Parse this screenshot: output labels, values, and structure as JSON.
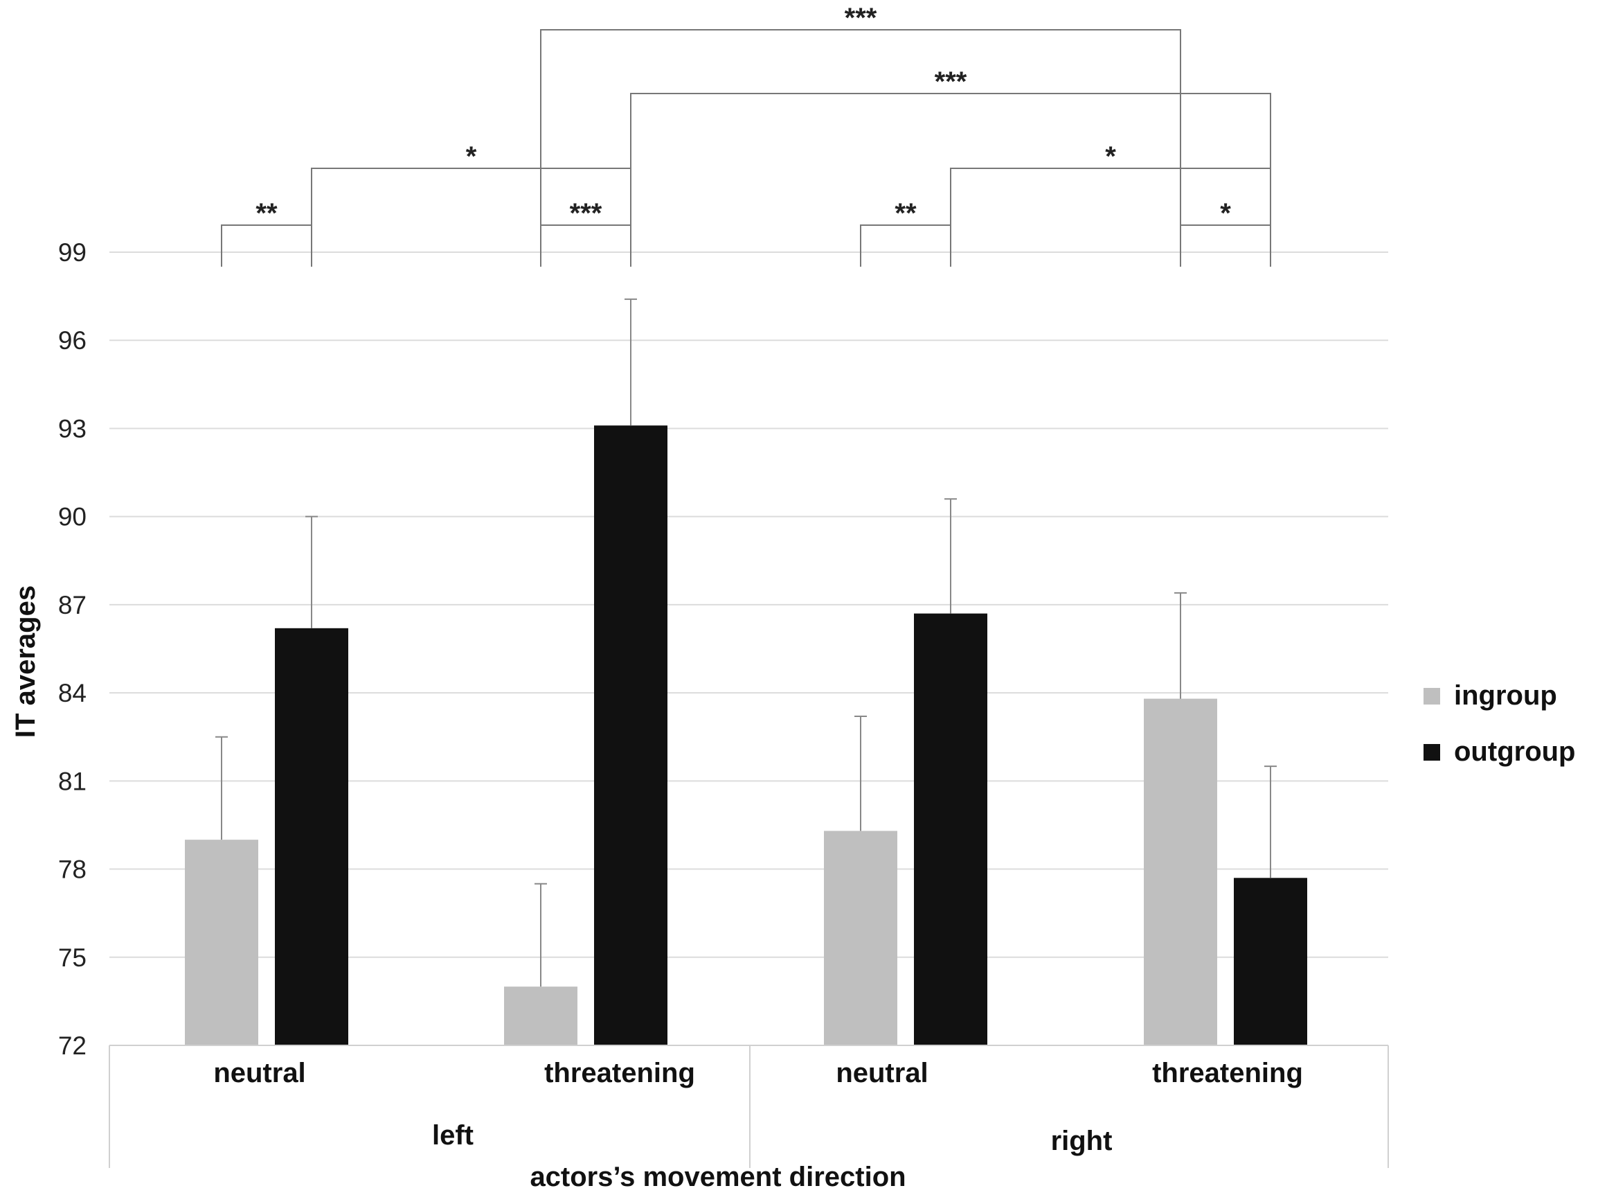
{
  "chart_data": {
    "type": "bar",
    "ylabel": "IT averages",
    "xlabel": "actors’s movement direction",
    "ylim": [
      72,
      99
    ],
    "yticks": [
      72,
      75,
      78,
      81,
      84,
      87,
      90,
      93,
      96,
      99
    ],
    "groups": [
      "left",
      "right"
    ],
    "categories": [
      "neutral",
      "threatening",
      "neutral",
      "threatening"
    ],
    "category_groups": [
      0,
      0,
      1,
      1
    ],
    "series": [
      {
        "name": "ingroup",
        "color": "#bfbfbf",
        "values": [
          79.0,
          74.0,
          79.3,
          83.8
        ],
        "errors": [
          3.5,
          3.5,
          3.9,
          3.6
        ]
      },
      {
        "name": "outgroup",
        "color": "#111111",
        "values": [
          86.2,
          93.1,
          86.7,
          77.7
        ],
        "errors": [
          3.8,
          4.3,
          3.9,
          3.8
        ]
      }
    ],
    "significance": [
      {
        "from": [
          0,
          0
        ],
        "to": [
          0,
          1
        ],
        "label": "**"
      },
      {
        "from": [
          1,
          0
        ],
        "to": [
          1,
          1
        ],
        "label": "***"
      },
      {
        "from": [
          2,
          0
        ],
        "to": [
          2,
          1
        ],
        "label": "**"
      },
      {
        "from": [
          3,
          0
        ],
        "to": [
          3,
          1
        ],
        "label": "*"
      },
      {
        "from": [
          0,
          1
        ],
        "to": [
          1,
          1
        ],
        "label": "*"
      },
      {
        "from": [
          2,
          1
        ],
        "to": [
          3,
          1
        ],
        "label": "*"
      },
      {
        "from": [
          1,
          1
        ],
        "to": [
          3,
          1
        ],
        "label": "***"
      },
      {
        "from": [
          1,
          0
        ],
        "to": [
          3,
          0
        ],
        "label": "***"
      }
    ],
    "legend": [
      "ingroup",
      "outgroup"
    ],
    "legend_position": "right"
  }
}
